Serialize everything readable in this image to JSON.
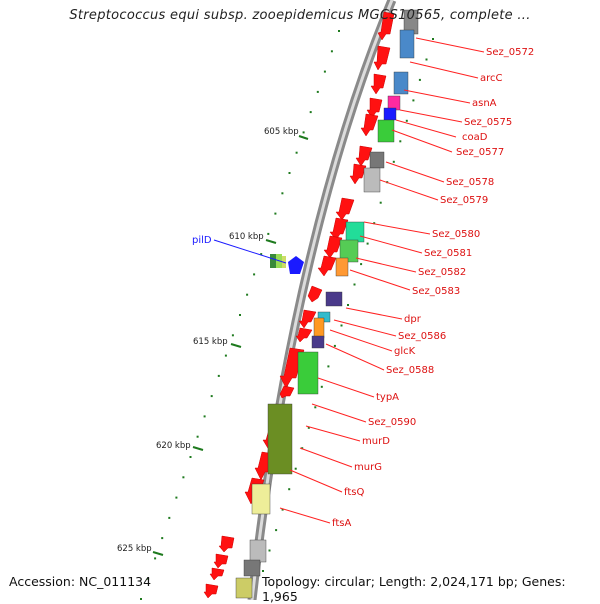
{
  "title": "Streptococcus equi subsp. zooepidemicus MGCS10565, complete ...",
  "accession": "Accession: NC_011134",
  "topology": "Topology: circular; Length: 2,024,171 bp; Genes: 1,965",
  "scale_labels": [
    "605 kbp",
    "610 kbp",
    "615 kbp",
    "620 kbp",
    "625 kbp"
  ],
  "genes": [
    {
      "name": "Sez_0572",
      "color": "#4a89c9",
      "strand": "right"
    },
    {
      "name": "arcC",
      "color": "#4a89c9",
      "strand": "right"
    },
    {
      "name": "asnA",
      "color": "#ff2aa0",
      "strand": "right"
    },
    {
      "name": "Sez_0575",
      "color": "#1a1aff",
      "strand": "right"
    },
    {
      "name": "coaD",
      "color": "#3acc3a",
      "strand": "right"
    },
    {
      "name": "Sez_0577",
      "color": "#3acc3a",
      "strand": "right"
    },
    {
      "name": "Sez_0578",
      "color": "#777777",
      "strand": "right"
    },
    {
      "name": "Sez_0579",
      "color": "#bbbbbb",
      "strand": "right"
    },
    {
      "name": "Sez_0580",
      "color": "#22dd99",
      "strand": "right"
    },
    {
      "name": "Sez_0581",
      "color": "#55cc55",
      "strand": "right"
    },
    {
      "name": "Sez_0582",
      "color": "#ff9933",
      "strand": "right"
    },
    {
      "name": "Sez_0583",
      "color": "#55cc55",
      "strand": "right"
    },
    {
      "name": "dpr",
      "color": "#4a3a8a",
      "strand": "right"
    },
    {
      "name": "Sez_0586",
      "color": "#33bbcc",
      "strand": "right"
    },
    {
      "name": "glcK",
      "color": "#ff9922",
      "strand": "right"
    },
    {
      "name": "Sez_0588",
      "color": "#4a3a8a",
      "strand": "right"
    },
    {
      "name": "typA",
      "color": "#3acc3a",
      "strand": "right"
    },
    {
      "name": "Sez_0590",
      "color": "#6b8e23",
      "strand": "right"
    },
    {
      "name": "murD",
      "color": "#6b8e23",
      "strand": "right"
    },
    {
      "name": "murG",
      "color": "#6b8e23",
      "strand": "right"
    },
    {
      "name": "ftsQ",
      "color": "#eeee99",
      "strand": "right"
    },
    {
      "name": "ftsA",
      "color": "#eeee99",
      "strand": "right"
    }
  ],
  "left_gene": {
    "name": "pilD",
    "color": "#1a1aff"
  }
}
